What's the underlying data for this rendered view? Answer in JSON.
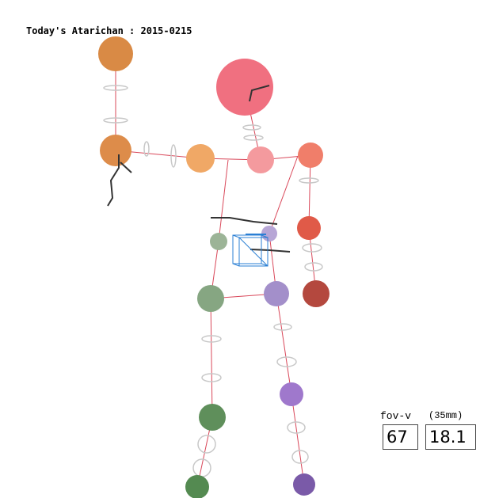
{
  "header": {
    "title": "Today's Atarichan : 2015-0215"
  },
  "viewer": {
    "fov_label": "fov-v",
    "focal_unit_label": "(35mm)",
    "fov_value": "67",
    "focal_value": "18.1"
  },
  "colors": {
    "bone_line": "#d9485a",
    "head": "#f07080",
    "right_arm": "#e8913f",
    "left_arm": "#e8604e",
    "pelvis_right": "#6f9a6a",
    "pelvis_left": "#9a85c4",
    "selection_cube": "#2a7fd4",
    "ring": "#c8c8c8"
  }
}
